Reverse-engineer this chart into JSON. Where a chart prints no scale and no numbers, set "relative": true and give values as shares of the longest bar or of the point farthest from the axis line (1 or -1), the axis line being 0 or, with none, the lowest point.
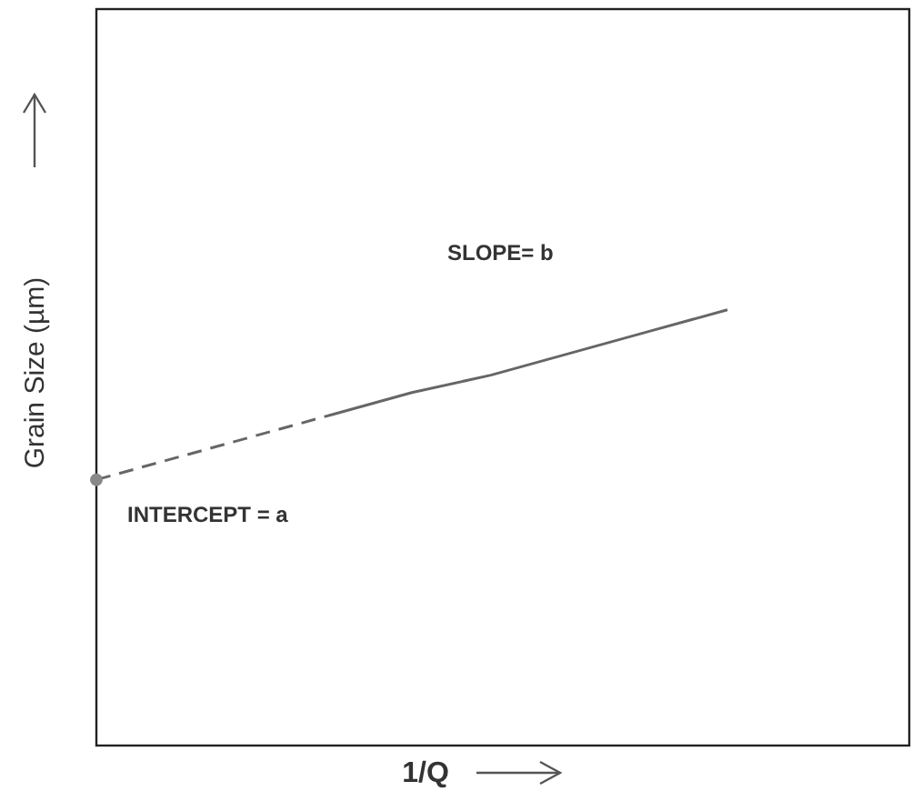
{
  "chart_data": {
    "type": "line",
    "relative": true,
    "xlabel": "1/Q",
    "ylabel": "Grain Size (µm)",
    "categories": [
      null,
      null,
      null,
      null,
      null,
      null,
      null,
      null,
      null
    ],
    "series": [
      {
        "color": "#666666",
        "line_style": "dashed",
        "values": [
          0.61,
          0.66,
          0.71,
          0.76,
          0.81,
          0.85,
          0.9,
          0.95,
          1.0
        ]
      }
    ],
    "annotations": [
      "SLOPE= b",
      "INTERCEPT = a"
    ]
  }
}
